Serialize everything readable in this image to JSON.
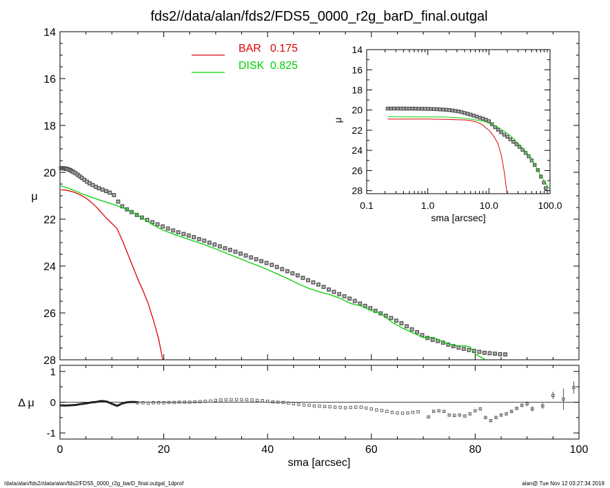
{
  "title": "fds2//data/alan/fds2/FDS5_0000_r2g_barD_final.outgal",
  "footer": {
    "left": "/data/alan/fds2//data/alan/fds2/FDS5_0000_r2g_barD_final.outgal_1dprof",
    "right": "alan@  Tue Nov 12 03:27:34 2019"
  },
  "colors": {
    "bar": "#e00000",
    "disk": "#00d000",
    "data": "#555555",
    "axis": "#000000"
  },
  "chart_data": [
    {
      "id": "main",
      "type": "line",
      "xlabel": "",
      "ylabel": "μ",
      "xlim": [
        0,
        100
      ],
      "ylim": [
        28,
        14
      ],
      "xticks": [
        0,
        20,
        40,
        60,
        80,
        100
      ],
      "yticks": [
        14,
        16,
        18,
        20,
        22,
        24,
        26,
        28
      ],
      "legend": {
        "placement": "top-center",
        "entries": [
          {
            "label": "BAR",
            "value": "0.175",
            "color": "#e00000"
          },
          {
            "label": "DISK",
            "value": "0.825",
            "color": "#00d000"
          }
        ]
      },
      "series": [
        {
          "name": "BAR",
          "type": "line",
          "x": [
            0.2,
            1,
            2,
            3,
            4,
            5,
            6,
            7,
            8,
            9,
            10,
            11,
            12,
            13,
            14,
            15,
            16,
            17,
            18,
            19,
            19.8
          ],
          "y": [
            20.75,
            20.76,
            20.8,
            20.87,
            20.97,
            21.1,
            21.27,
            21.48,
            21.72,
            21.97,
            22.18,
            22.4,
            22.9,
            23.45,
            24.0,
            24.55,
            25.05,
            25.6,
            26.3,
            27.1,
            28.0
          ]
        },
        {
          "name": "DISK",
          "type": "line",
          "x": [
            0.2,
            1,
            2,
            3,
            4,
            5,
            6,
            8,
            10,
            12,
            14,
            16,
            18,
            20,
            22,
            24,
            26,
            28,
            30,
            32,
            34,
            36,
            38,
            40,
            42,
            44,
            46,
            48,
            50,
            52,
            54,
            56,
            58,
            60,
            62,
            64,
            66,
            68,
            70,
            72,
            74,
            76,
            78,
            79,
            80,
            82
          ],
          "y": [
            20.58,
            20.63,
            20.71,
            20.8,
            20.89,
            20.98,
            21.06,
            21.21,
            21.35,
            21.5,
            21.7,
            21.98,
            22.25,
            22.48,
            22.65,
            22.8,
            22.95,
            23.1,
            23.27,
            23.45,
            23.62,
            23.8,
            23.97,
            24.15,
            24.35,
            24.55,
            24.77,
            24.96,
            25.1,
            25.22,
            25.38,
            25.6,
            25.7,
            25.9,
            26.05,
            26.4,
            26.65,
            26.85,
            27.05,
            27.05,
            27.25,
            27.4,
            27.4,
            27.45,
            27.75,
            28.0
          ]
        },
        {
          "name": "",
          "type": "scatter",
          "x": [
            0.2,
            0.4,
            0.6,
            0.8,
            1.0,
            1.2,
            1.4,
            1.7,
            2.0,
            2.3,
            2.6,
            3.0,
            3.4,
            3.8,
            4.2,
            4.7,
            5.2,
            5.7,
            6.3,
            6.9,
            7.5,
            8.2,
            8.9,
            9.6,
            10.4,
            11.2,
            12.0,
            12.9,
            13.8,
            14.8,
            15.8,
            16.8,
            17.8,
            18.8,
            19.8,
            20.8,
            21.8,
            22.8,
            23.8,
            24.8,
            25.8,
            26.8,
            27.8,
            28.8,
            29.8,
            30.8,
            31.8,
            32.8,
            33.8,
            34.8,
            35.8,
            36.8,
            37.8,
            38.8,
            39.8,
            40.8,
            41.8,
            42.8,
            43.8,
            44.8,
            45.8,
            46.8,
            47.8,
            48.8,
            49.8,
            50.8,
            51.8,
            52.8,
            53.8,
            54.8,
            55.8,
            56.8,
            57.8,
            58.8,
            59.8,
            60.8,
            61.8,
            62.8,
            63.8,
            64.8,
            65.8,
            66.8,
            67.8,
            68.8,
            69.8,
            70.8,
            71.8,
            72.8,
            73.8,
            74.8,
            75.8,
            76.8,
            77.8,
            78.8,
            79.8,
            80.8,
            81.8,
            82.8,
            83.8,
            84.8,
            85.8
          ],
          "y": [
            19.82,
            19.82,
            19.83,
            19.83,
            19.84,
            19.85,
            19.86,
            19.88,
            19.91,
            19.95,
            19.99,
            20.04,
            20.1,
            20.17,
            20.24,
            20.32,
            20.4,
            20.47,
            20.54,
            20.62,
            20.68,
            20.74,
            20.8,
            20.87,
            20.97,
            21.25,
            21.45,
            21.58,
            21.7,
            21.82,
            21.93,
            22.03,
            22.13,
            22.22,
            22.31,
            22.4,
            22.48,
            22.56,
            22.63,
            22.7,
            22.77,
            22.85,
            22.92,
            23.0,
            23.08,
            23.16,
            23.24,
            23.31,
            23.39,
            23.47,
            23.55,
            23.63,
            23.71,
            23.79,
            23.87,
            23.95,
            24.04,
            24.13,
            24.22,
            24.31,
            24.4,
            24.5,
            24.6,
            24.7,
            24.79,
            24.89,
            25.0,
            25.1,
            25.2,
            25.29,
            25.39,
            25.49,
            25.6,
            25.7,
            25.8,
            25.91,
            26.02,
            26.12,
            26.22,
            26.33,
            26.44,
            26.57,
            26.7,
            26.82,
            26.95,
            27.07,
            27.15,
            27.2,
            27.27,
            27.35,
            27.42,
            27.48,
            27.53,
            27.58,
            27.62,
            27.66,
            27.7,
            27.72,
            27.74,
            27.76,
            27.77
          ]
        }
      ]
    },
    {
      "id": "residual",
      "type": "scatter",
      "xlabel": "sma [arcsec]",
      "ylabel": "Δ μ",
      "xlim": [
        0,
        100
      ],
      "ylim": [
        -1.2,
        1.2
      ],
      "xticks": [
        0,
        20,
        40,
        60,
        80,
        100
      ],
      "yticks": [
        -1,
        0,
        1
      ],
      "zero_line": true,
      "series": [
        {
          "name": "",
          "type": "line",
          "x": [
            0,
            1,
            2,
            3,
            4,
            5,
            6,
            7,
            8,
            9,
            10,
            11,
            12,
            13,
            14,
            15
          ],
          "y": [
            -0.1,
            -0.11,
            -0.1,
            -0.09,
            -0.06,
            -0.04,
            -0.01,
            0.01,
            0.04,
            0.02,
            -0.05,
            -0.12,
            -0.04,
            0.0,
            0.01,
            0.0
          ]
        },
        {
          "name": "",
          "type": "scatter",
          "x": [
            15,
            16,
            17,
            18,
            19,
            20,
            21,
            22,
            23,
            24,
            25,
            26,
            27,
            28,
            29,
            30,
            31,
            32,
            33,
            34,
            35,
            36,
            37,
            38,
            39,
            40,
            41,
            42,
            43,
            44,
            45,
            46,
            47,
            48,
            49,
            50,
            51,
            52,
            53,
            54,
            55,
            56,
            57,
            58,
            59,
            60,
            61,
            62,
            63,
            64,
            65,
            66,
            67,
            68,
            69
          ],
          "y": [
            -0.02,
            -0.02,
            -0.03,
            -0.02,
            -0.02,
            -0.02,
            -0.01,
            -0.01,
            0.0,
            0.0,
            0.0,
            0.01,
            0.02,
            0.03,
            0.04,
            0.06,
            0.07,
            0.08,
            0.08,
            0.08,
            0.08,
            0.08,
            0.07,
            0.06,
            0.05,
            0.03,
            0.01,
            0.0,
            -0.01,
            -0.03,
            -0.05,
            -0.07,
            -0.09,
            -0.1,
            -0.12,
            -0.13,
            -0.14,
            -0.15,
            -0.16,
            -0.17,
            -0.18,
            -0.17,
            -0.16,
            -0.16,
            -0.19,
            -0.22,
            -0.25,
            -0.27,
            -0.3,
            -0.33,
            -0.35,
            -0.36,
            -0.35,
            -0.33,
            -0.31
          ]
        },
        {
          "name": "",
          "type": "errorbar",
          "x": [
            71,
            72,
            73,
            74,
            75,
            76,
            77,
            78,
            79,
            80,
            81,
            82,
            83,
            84,
            85,
            86,
            87,
            88,
            89,
            90,
            91,
            93,
            95,
            97,
            99
          ],
          "y": [
            -0.48,
            -0.3,
            -0.28,
            -0.3,
            -0.42,
            -0.43,
            -0.42,
            -0.45,
            -0.38,
            -0.28,
            -0.22,
            -0.5,
            -0.6,
            -0.5,
            -0.42,
            -0.38,
            -0.3,
            -0.2,
            -0.1,
            -0.05,
            -0.22,
            -0.12,
            0.22,
            0.1,
            0.48
          ],
          "err": [
            0.02,
            0.02,
            0.02,
            0.02,
            0.02,
            0.02,
            0.02,
            0.02,
            0.02,
            0.02,
            0.02,
            0.03,
            0.03,
            0.03,
            0.03,
            0.03,
            0.04,
            0.05,
            0.06,
            0.08,
            0.08,
            0.1,
            0.12,
            0.35,
            0.2
          ]
        }
      ]
    },
    {
      "id": "inset",
      "type": "line",
      "xlabel": "sma [arcsec]",
      "ylabel": "μ",
      "xscale": "log",
      "xlim": [
        0.1,
        100
      ],
      "ylim": [
        28.3,
        14
      ],
      "xticks": [
        0.1,
        1,
        10,
        100
      ],
      "xticklabels": [
        "0.1",
        "1.0",
        "10.0",
        "100.0"
      ],
      "yticks": [
        14,
        16,
        18,
        20,
        22,
        24,
        26,
        28
      ],
      "series": [
        {
          "name": "",
          "type": "line",
          "x": [
            0.22,
            0.3,
            0.5,
            0.7,
            1,
            1.5,
            2,
            3,
            4,
            5,
            6,
            7,
            8,
            9,
            10,
            12,
            14,
            16,
            18,
            19.8
          ],
          "y": [
            20.9,
            20.9,
            20.9,
            20.9,
            20.9,
            20.92,
            20.93,
            20.96,
            20.98,
            21.05,
            21.15,
            21.3,
            21.5,
            21.8,
            22.0,
            22.6,
            23.3,
            24.5,
            26.3,
            28.3
          ]
        },
        {
          "name": "",
          "type": "line",
          "x": [
            0.22,
            0.3,
            0.5,
            0.7,
            1,
            1.5,
            2,
            3,
            4,
            5,
            6,
            8,
            10,
            12,
            15,
            20,
            25,
            30,
            40,
            50,
            60,
            70,
            80,
            90,
            100
          ],
          "y": [
            20.65,
            20.66,
            20.67,
            20.68,
            20.68,
            20.69,
            20.7,
            20.75,
            20.82,
            20.9,
            20.98,
            21.1,
            21.3,
            21.5,
            21.8,
            22.3,
            22.8,
            23.3,
            24.1,
            24.8,
            25.7,
            26.5,
            27.0,
            27.5,
            27.95
          ]
        },
        {
          "name": "",
          "type": "scatter",
          "x": [
            0.22,
            0.25,
            0.28,
            0.32,
            0.36,
            0.4,
            0.45,
            0.5,
            0.56,
            0.63,
            0.71,
            0.8,
            0.9,
            1.0,
            1.12,
            1.26,
            1.41,
            1.58,
            1.78,
            2.0,
            2.24,
            2.51,
            2.82,
            3.16,
            3.55,
            3.98,
            4.47,
            5.01,
            5.62,
            6.31,
            7.08,
            7.94,
            8.91,
            10.0,
            11.2,
            12.6,
            14.1,
            15.8,
            17.8,
            20.0,
            22.4,
            25.1,
            28.2,
            31.6,
            35.5,
            39.8,
            44.7,
            50.1,
            56.2,
            63.1,
            70.8,
            79.4,
            85
          ],
          "y": [
            19.85,
            19.85,
            19.85,
            19.85,
            19.85,
            19.85,
            19.86,
            19.86,
            19.86,
            19.86,
            19.87,
            19.87,
            19.88,
            19.88,
            19.89,
            19.9,
            19.91,
            19.93,
            19.95,
            19.97,
            20.0,
            20.04,
            20.08,
            20.13,
            20.2,
            20.28,
            20.37,
            20.45,
            20.55,
            20.65,
            20.75,
            20.85,
            20.95,
            21.1,
            21.4,
            21.7,
            21.95,
            22.2,
            22.45,
            22.65,
            22.9,
            23.15,
            23.4,
            23.65,
            23.95,
            24.25,
            24.6,
            25.0,
            25.45,
            25.95,
            26.6,
            27.2,
            27.75
          ]
        }
      ]
    }
  ]
}
